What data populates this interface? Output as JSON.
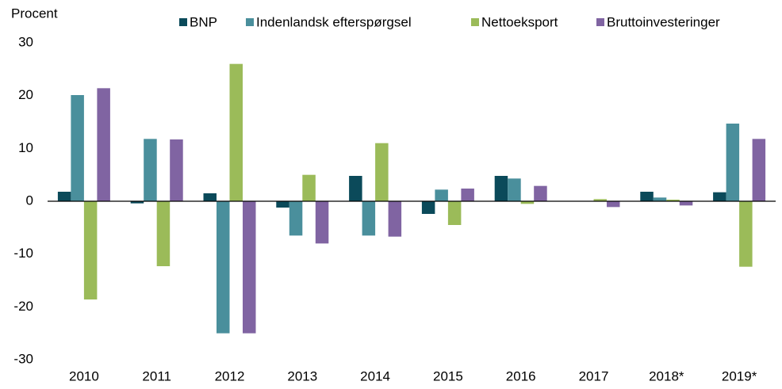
{
  "chart_data": {
    "type": "bar",
    "y_label": "Procent",
    "categories": [
      "2010",
      "2011",
      "2012",
      "2013",
      "2014",
      "2015",
      "2016",
      "2017",
      "2018*",
      "2019*"
    ],
    "series": [
      {
        "name": "BNP",
        "color": "#0b4a5a",
        "values": [
          1.8,
          -0.4,
          1.5,
          -1.2,
          4.8,
          -2.4,
          4.8,
          0,
          1.8,
          1.7
        ]
      },
      {
        "name": "Indenlandsk efterspørgsel",
        "color": "#4a8f9c",
        "values": [
          20.1,
          11.8,
          -25,
          -6.5,
          -6.5,
          2.2,
          4.3,
          0,
          0.7,
          14.7
        ]
      },
      {
        "name": "Nettoeksport",
        "color": "#9bbb59",
        "values": [
          -18.6,
          -12.3,
          26,
          5,
          11,
          -4.5,
          -0.5,
          0.4,
          0.3,
          -12.4
        ]
      },
      {
        "name": "Bruttoinvesteringer",
        "color": "#8064a2",
        "values": [
          21.4,
          11.7,
          -25,
          -8,
          -6.7,
          2.4,
          2.9,
          -1.1,
          -0.8,
          11.8
        ]
      }
    ],
    "ylim": [
      -30,
      30
    ],
    "yticks": [
      -30,
      -20,
      -10,
      0,
      10,
      20,
      30
    ],
    "grid": false,
    "legend": "top"
  }
}
